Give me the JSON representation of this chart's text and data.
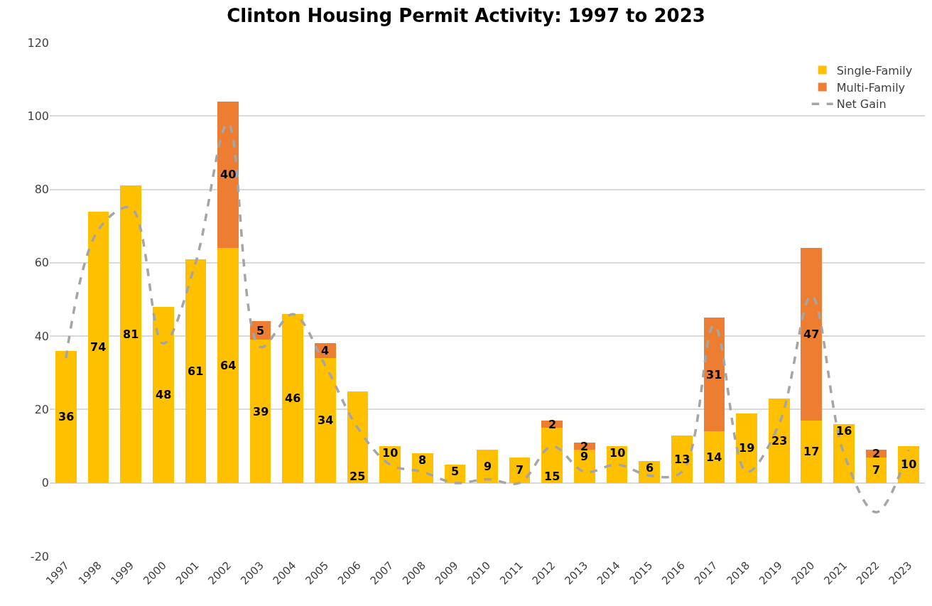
{
  "chart_data": {
    "type": "bar",
    "stacked": true,
    "title": "Clinton Housing Permit Activity: 1997 to 2023",
    "categories": [
      "1997",
      "1998",
      "1999",
      "2000",
      "2001",
      "2002",
      "2003",
      "2004",
      "2005",
      "2006",
      "2007",
      "2008",
      "2009",
      "2010",
      "2011",
      "2012",
      "2013",
      "2014",
      "2015",
      "2016",
      "2017",
      "2018",
      "2019",
      "2020",
      "2021",
      "2022",
      "2023"
    ],
    "series": [
      {
        "name": "Single-Family",
        "color": "#ffc000",
        "values": [
          36,
          74,
          81,
          48,
          61,
          64,
          39,
          46,
          34,
          25,
          10,
          8,
          5,
          9,
          7,
          15,
          9,
          10,
          6,
          13,
          14,
          19,
          23,
          17,
          16,
          7,
          10
        ],
        "value_labels": [
          "36",
          "74",
          "81",
          "48",
          "61",
          "64",
          "39",
          "46",
          "34",
          "25",
          "10",
          "8",
          "5",
          "9",
          "7",
          "15",
          "9",
          "10",
          "6",
          "13",
          "14",
          "19",
          "23",
          "17",
          "16",
          "7",
          "10"
        ]
      },
      {
        "name": "Multi-Family",
        "color": "#ed7d31",
        "values": [
          null,
          null,
          null,
          null,
          null,
          40,
          5,
          null,
          4,
          null,
          null,
          null,
          null,
          null,
          null,
          2,
          2,
          null,
          null,
          null,
          31,
          null,
          null,
          47,
          null,
          2,
          null
        ],
        "value_labels": [
          null,
          null,
          null,
          null,
          null,
          "40",
          "5",
          null,
          "4",
          null,
          null,
          null,
          null,
          null,
          null,
          "2",
          "2",
          null,
          null,
          null,
          "31",
          null,
          null,
          "47",
          null,
          "2",
          null
        ]
      },
      {
        "name": "Net Gain",
        "type": "line",
        "color": "#a5a5a5",
        "line_style": "dashed",
        "marker": "none",
        "values": [
          34,
          69,
          75,
          38,
          60,
          98,
          37,
          46,
          32,
          15,
          5,
          3,
          0,
          1,
          0,
          10,
          3,
          5,
          2,
          3,
          43,
          3,
          16,
          51,
          8,
          -8,
          9
        ]
      }
    ],
    "ylim": [
      -20,
      120
    ],
    "yticks": [
      -20,
      0,
      20,
      40,
      60,
      80,
      100,
      120
    ],
    "grid": "y",
    "legend": "top right"
  }
}
